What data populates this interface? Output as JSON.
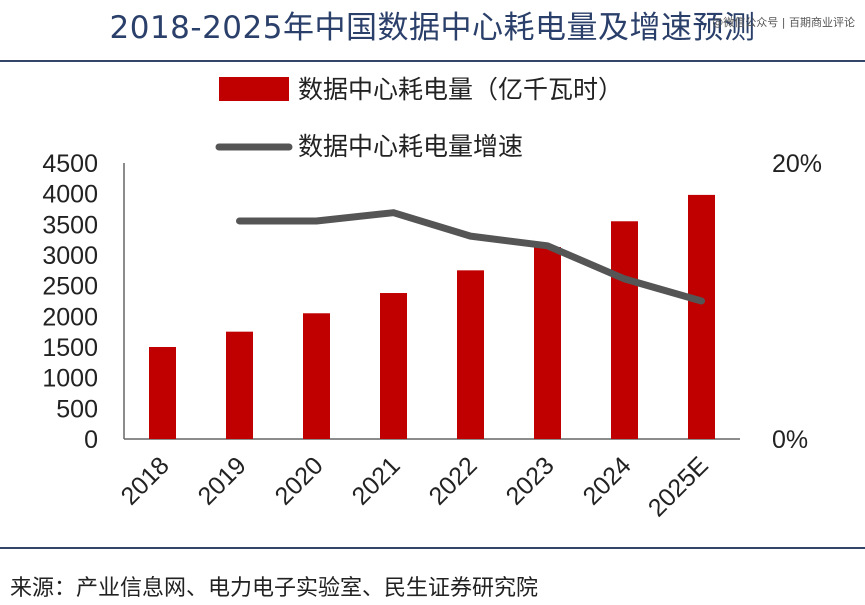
{
  "page": {
    "title": "2018-2025年中国数据中心耗电量及增速预测",
    "watermark": "@微信公众号 | 百期商业评论",
    "source": "来源：产业信息网、电力电子实验室、民生证券研究院"
  },
  "colors": {
    "bar": "#c00000",
    "line": "#555555",
    "axis": "#666666",
    "rule": "#34456a"
  },
  "chart_data": {
    "type": "bar",
    "categories": [
      "2018",
      "2019",
      "2020",
      "2021",
      "2022",
      "2023",
      "2024",
      "2025E"
    ],
    "series": [
      {
        "name": "数据中心耗电量（亿千瓦时）",
        "kind": "bar",
        "axis": "left",
        "values": [
          1500,
          1750,
          2050,
          2380,
          2750,
          3130,
          3550,
          3980
        ]
      },
      {
        "name": "数据中心耗电量增速",
        "kind": "line",
        "axis": "right",
        "values": [
          null,
          15.8,
          15.8,
          16.4,
          14.7,
          14.0,
          11.6,
          10.0
        ]
      }
    ],
    "ylim": [
      0,
      4500
    ],
    "yticks": [
      "0",
      "500",
      "1000",
      "1500",
      "2000",
      "2500",
      "3000",
      "3500",
      "4000",
      "4500"
    ],
    "y2lim": [
      0,
      20
    ],
    "y2ticks": [
      "0%",
      "20%"
    ],
    "legend_position": "top",
    "grid": false
  }
}
